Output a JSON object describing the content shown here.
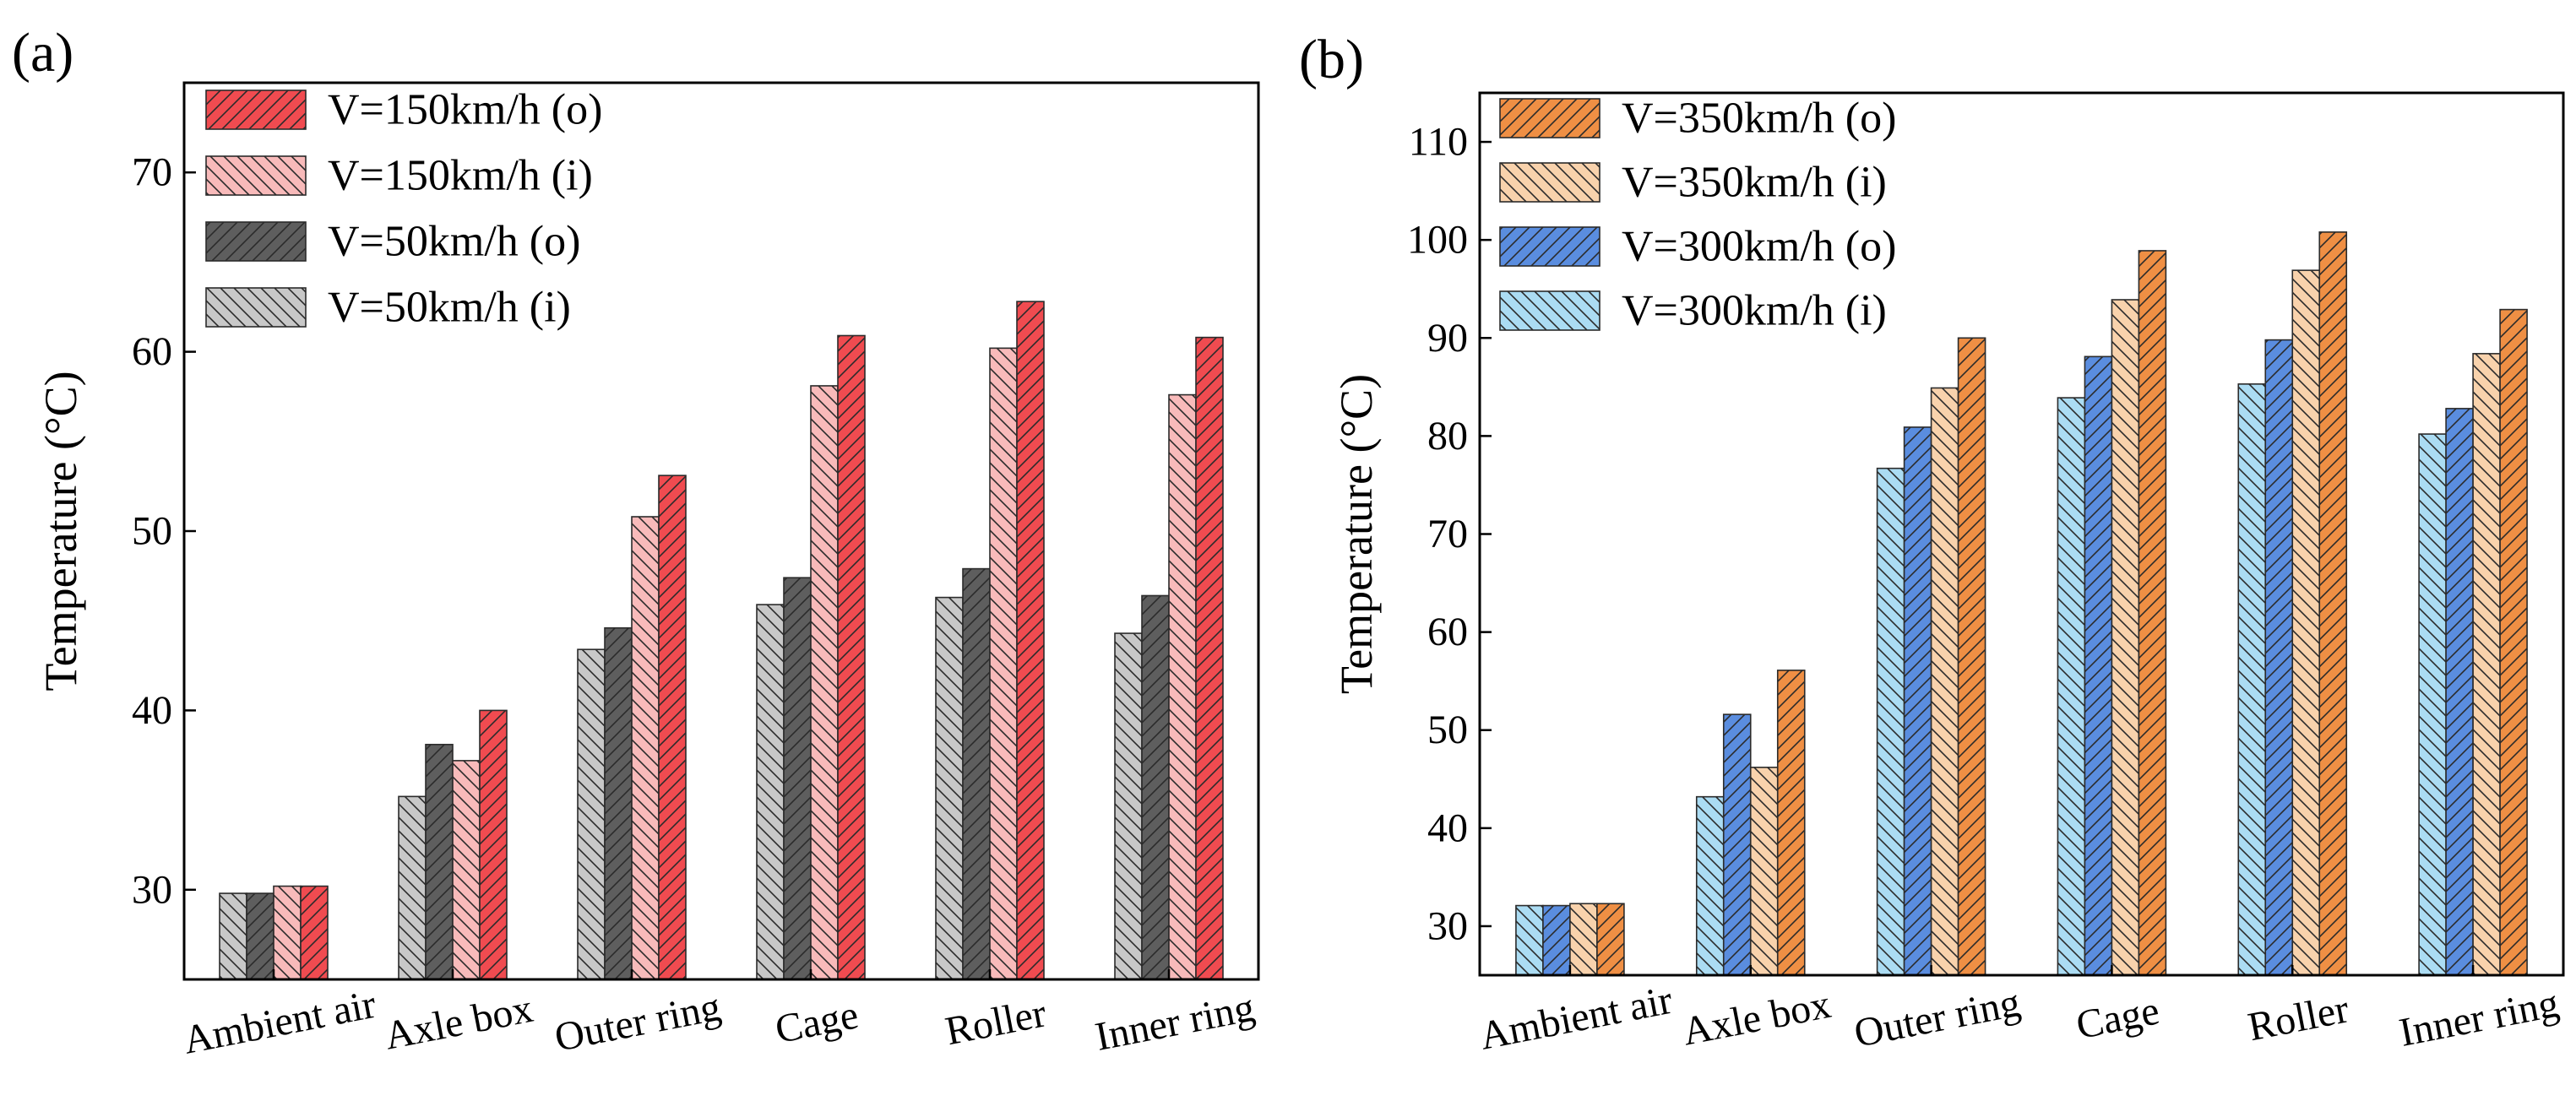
{
  "chart_data": [
    {
      "panel_label": "(a)",
      "type": "bar",
      "title": "",
      "xlabel": "",
      "ylabel": "Temperature (°C)",
      "ylim": [
        25,
        75
      ],
      "yticks": [
        30,
        40,
        50,
        60,
        70
      ],
      "grid": false,
      "legend_position": "top-left",
      "categories": [
        "Ambient air",
        "Axle box",
        "Outer ring",
        "Cage",
        "Roller",
        "Inner ring"
      ],
      "series": [
        {
          "name": "V=50km/h (i)",
          "color": "#c8c8c8",
          "pattern": "backslash",
          "values": [
            29.8,
            35.2,
            43.4,
            45.9,
            46.3,
            44.3
          ]
        },
        {
          "name": "V=50km/h (o)",
          "color": "#5e5e5e",
          "pattern": "slash",
          "values": [
            29.8,
            38.1,
            44.6,
            47.4,
            47.9,
            46.4
          ]
        },
        {
          "name": "V=150km/h (i)",
          "color": "#f8baba",
          "pattern": "backslash",
          "values": [
            30.2,
            37.2,
            50.8,
            58.1,
            60.2,
            57.6
          ]
        },
        {
          "name": "V=150km/h (o)",
          "color": "#f04b50",
          "pattern": "slash",
          "values": [
            30.2,
            40.0,
            53.1,
            60.9,
            62.8,
            60.8
          ]
        }
      ],
      "legend_order": [
        "V=150km/h (o)",
        "V=150km/h (i)",
        "V=50km/h (o)",
        "V=50km/h (i)"
      ]
    },
    {
      "panel_label": "(b)",
      "type": "bar",
      "title": "",
      "xlabel": "",
      "ylabel": "Temperature (°C)",
      "ylim": [
        25,
        115
      ],
      "yticks": [
        30,
        40,
        50,
        60,
        70,
        80,
        90,
        100,
        110
      ],
      "grid": false,
      "legend_position": "top-left",
      "categories": [
        "Ambient air",
        "Axle box",
        "Outer ring",
        "Cage",
        "Roller",
        "Inner ring"
      ],
      "series": [
        {
          "name": "V=300km/h (i)",
          "color": "#abdcf3",
          "pattern": "backslash",
          "values": [
            32.1,
            43.2,
            76.7,
            83.9,
            85.3,
            80.2
          ]
        },
        {
          "name": "V=300km/h (o)",
          "color": "#5a8ddf",
          "pattern": "slash",
          "values": [
            32.1,
            51.6,
            80.9,
            88.1,
            89.8,
            82.8
          ]
        },
        {
          "name": "V=350km/h (i)",
          "color": "#f8d2ac",
          "pattern": "backslash",
          "values": [
            32.3,
            46.2,
            84.9,
            93.9,
            96.9,
            88.4
          ]
        },
        {
          "name": "V=350km/h (o)",
          "color": "#ef8f44",
          "pattern": "slash",
          "values": [
            32.3,
            56.1,
            90.0,
            98.9,
            100.8,
            92.9
          ]
        }
      ],
      "legend_order": [
        "V=350km/h (o)",
        "V=350km/h (i)",
        "V=300km/h (o)",
        "V=300km/h (i)"
      ]
    }
  ]
}
